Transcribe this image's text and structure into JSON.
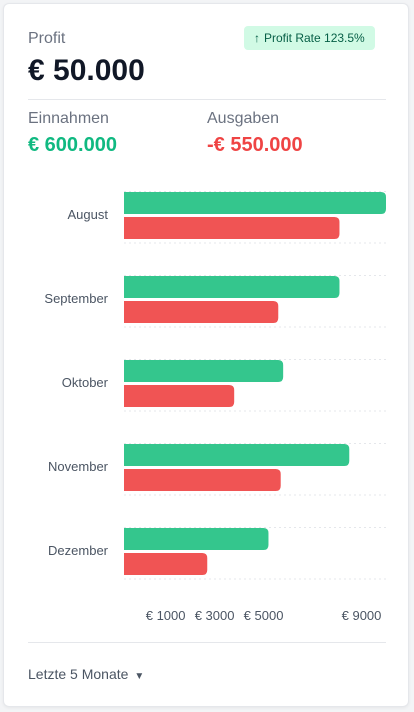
{
  "header": {
    "profit_label": "Profit",
    "profit_value": "€ 50.000",
    "badge_arrow": "↑",
    "badge_label": "Profit Rate 123.5%"
  },
  "stats": {
    "income_label": "Einnahmen",
    "income_value": "€ 600.000",
    "expense_label": "Ausgaben",
    "expense_value": "-€ 550.000"
  },
  "footer": {
    "period_label": "Letzte 5 Monate"
  },
  "colors": {
    "income": "#34c68d",
    "expense": "#f05454"
  },
  "chart_data": {
    "type": "bar",
    "orientation": "horizontal",
    "categories": [
      "August",
      "September",
      "Oktober",
      "November",
      "Dezember"
    ],
    "series": [
      {
        "name": "Einnahmen",
        "values": [
          10000,
          8100,
          5800,
          8500,
          5200
        ]
      },
      {
        "name": "Ausgaben",
        "values": [
          8100,
          5600,
          3800,
          5700,
          2700
        ]
      }
    ],
    "xlim": [
      -700,
      10000
    ],
    "x_ticks": [
      1000,
      3000,
      5000,
      9000
    ],
    "x_tick_labels": [
      "€ 1000",
      "€ 3000",
      "€ 5000",
      "€ 9000"
    ],
    "grid": "horizontal-dotted",
    "legend": "none"
  }
}
